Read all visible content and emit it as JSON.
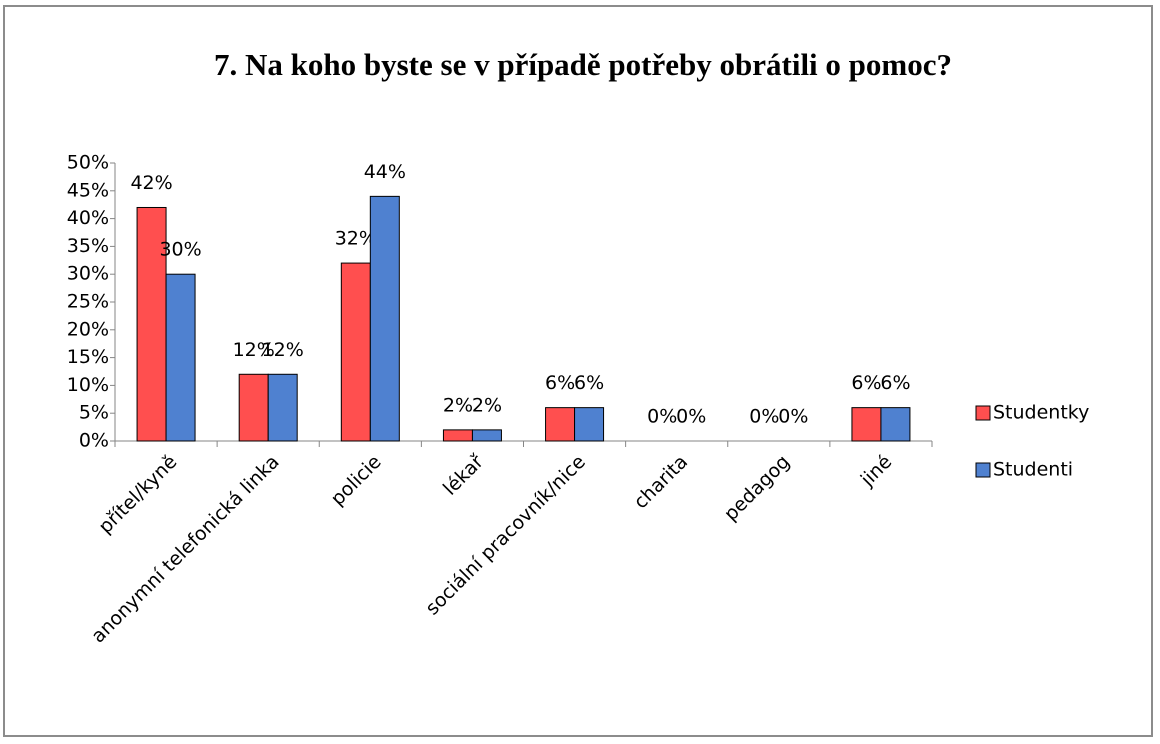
{
  "chart_data": {
    "type": "bar",
    "title": "7. Na koho byste se v případě potřeby obrátili o pomoc?",
    "categories": [
      "přítel/kyně",
      "anonymní telefonická linka",
      "policie",
      "lékař",
      "sociální pracovník/nice",
      "charita",
      "pedagog",
      "jiné"
    ],
    "series": [
      {
        "name": "Studentky",
        "color": "#ff4f4f",
        "values": [
          42,
          12,
          32,
          2,
          6,
          0,
          0,
          6
        ],
        "value_labels": [
          "42%",
          "12%",
          "32%",
          "2%",
          "6%",
          "0%",
          "0%",
          "6%"
        ]
      },
      {
        "name": "Studenti",
        "color": "#4f81d0",
        "values": [
          30,
          12,
          44,
          2,
          6,
          0,
          0,
          6
        ],
        "value_labels": [
          "30%",
          "12%",
          "44%",
          "2%",
          "6%",
          "0%",
          "0%",
          "6%"
        ]
      }
    ],
    "ylim": [
      0,
      50
    ],
    "yticks": [
      {
        "value": 0,
        "label": "0%"
      },
      {
        "value": 5,
        "label": "5%"
      },
      {
        "value": 10,
        "label": "10%"
      },
      {
        "value": 15,
        "label": "15%"
      },
      {
        "value": 20,
        "label": "20%"
      },
      {
        "value": 25,
        "label": "25%"
      },
      {
        "value": 30,
        "label": "30%"
      },
      {
        "value": 35,
        "label": "35%"
      },
      {
        "value": 40,
        "label": "40%"
      },
      {
        "value": 45,
        "label": "45%"
      },
      {
        "value": 50,
        "label": "50%"
      }
    ],
    "grid": false,
    "legend": "right"
  }
}
